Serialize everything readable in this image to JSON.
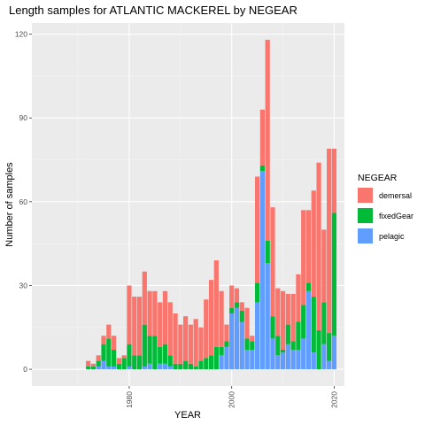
{
  "chart_data": {
    "type": "bar",
    "stacked": true,
    "title": "Length samples for ATLANTIC MACKEREL by NEGEAR",
    "xlabel": "YEAR",
    "ylabel": "Number of samples",
    "xlim": [
      1961,
      2022
    ],
    "ylim": [
      -6,
      124
    ],
    "xticks": [
      1980,
      2000,
      2020
    ],
    "yticks": [
      0,
      30,
      60,
      90,
      120
    ],
    "grid": true,
    "legend": {
      "title": "NEGEAR",
      "position": "right"
    },
    "series": [
      {
        "name": "pelagic",
        "color": "#619CFF"
      },
      {
        "name": "fixedGear",
        "color": "#00BA38"
      },
      {
        "name": "demersal",
        "color": "#F8766D"
      }
    ],
    "x": [
      1972,
      1973,
      1974,
      1975,
      1976,
      1977,
      1978,
      1979,
      1980,
      1981,
      1982,
      1983,
      1984,
      1985,
      1986,
      1987,
      1988,
      1989,
      1990,
      1991,
      1992,
      1993,
      1994,
      1995,
      1996,
      1997,
      1998,
      1999,
      2000,
      2001,
      2002,
      2003,
      2004,
      2005,
      2006,
      2007,
      2008,
      2009,
      2010,
      2011,
      2012,
      2013,
      2014,
      2015,
      2016,
      2017,
      2018,
      2019,
      2020
    ],
    "pelagic": [
      0,
      0,
      1,
      3,
      1,
      1,
      0,
      0,
      1,
      0,
      0,
      1,
      2,
      0,
      2,
      2,
      1,
      0,
      0,
      0,
      0,
      0,
      0,
      0,
      0,
      0,
      5,
      8,
      20,
      22,
      17,
      7,
      7,
      24,
      71,
      38,
      11,
      5,
      6,
      9,
      7,
      7,
      11,
      28,
      6,
      0,
      9,
      3,
      12
    ],
    "fixedGear": [
      1,
      1,
      2,
      6,
      10,
      6,
      2,
      4,
      8,
      5,
      5,
      15,
      10,
      12,
      6,
      7,
      4,
      2,
      2,
      3,
      2,
      1,
      3,
      4,
      5,
      8,
      3,
      2,
      2,
      2,
      4,
      4,
      3,
      7,
      2,
      8,
      8,
      7,
      1,
      7,
      3,
      10,
      12,
      3,
      20,
      14,
      15,
      10,
      44
    ],
    "demersal": [
      2,
      1,
      2,
      3,
      5,
      5,
      2,
      1,
      21,
      21,
      21,
      19,
      16,
      16,
      16,
      19,
      19,
      18,
      14,
      16,
      14,
      17,
      12,
      21,
      27,
      31,
      20,
      6,
      8,
      5,
      3,
      11,
      2,
      38,
      20,
      72,
      39,
      17,
      21,
      11,
      17,
      17,
      34,
      26,
      38,
      60,
      26,
      66,
      23
    ]
  }
}
